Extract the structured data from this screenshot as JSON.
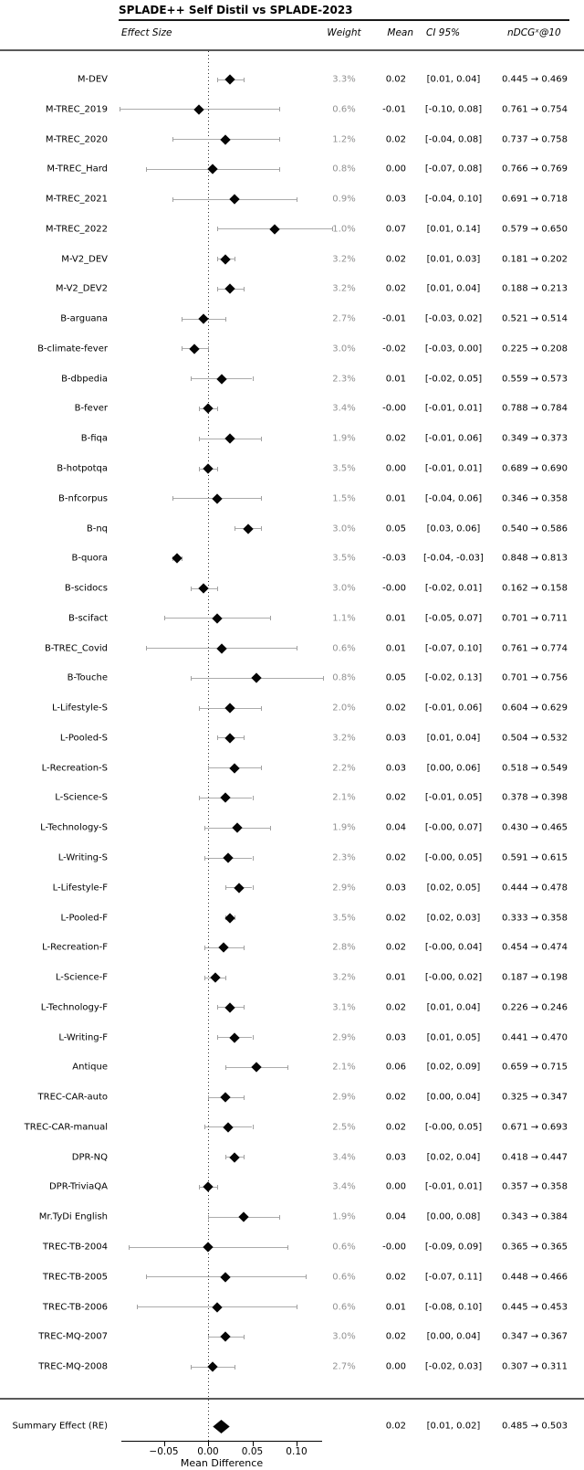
{
  "title": "SPLADE++ Self Distil vs SPLADE-2023",
  "header": {
    "effect_size": "Effect Size",
    "weight": "Weight",
    "mean": "Mean",
    "ci": "CI 95%",
    "ndcg": "nDCGˣ@10"
  },
  "colors": {
    "diamond": "#050505",
    "error_bar": "#ababab",
    "weight_text": "#919191",
    "zero_line": "#2a2a2a"
  },
  "chart_data": {
    "type": "forest",
    "title": "SPLADE++ Self Distil vs SPLADE-2023",
    "xlabel": "Mean Difference",
    "xlim": [
      -0.1,
      0.13
    ],
    "zero_line": 0.0,
    "legend_position": "none",
    "grid": false,
    "axis": {
      "label": "Mean Difference",
      "ticks": [
        {
          "value": -0.05,
          "text": "−0.05"
        },
        {
          "value": 0.0,
          "text": "0.00"
        },
        {
          "value": 0.05,
          "text": "0.05"
        },
        {
          "value": 0.1,
          "text": "0.10"
        }
      ]
    },
    "rows": [
      {
        "label": "M-DEV",
        "weight": "3.3%",
        "mean": "0.02",
        "ci": [
          0.01,
          0.04
        ],
        "ci_text": "[0.01, 0.04]",
        "ndcg": "0.445 → 0.469"
      },
      {
        "label": "M-TREC_2019",
        "weight": "0.6%",
        "mean": "-0.01",
        "ci": [
          -0.1,
          0.08
        ],
        "ci_text": "[-0.10, 0.08]",
        "ndcg": "0.761 → 0.754"
      },
      {
        "label": "M-TREC_2020",
        "weight": "1.2%",
        "mean": "0.02",
        "ci": [
          -0.04,
          0.08
        ],
        "ci_text": "[-0.04, 0.08]",
        "ndcg": "0.737 → 0.758"
      },
      {
        "label": "M-TREC_Hard",
        "weight": "0.8%",
        "mean": "0.00",
        "ci": [
          -0.07,
          0.08
        ],
        "ci_text": "[-0.07, 0.08]",
        "ndcg": "0.766 → 0.769"
      },
      {
        "label": "M-TREC_2021",
        "weight": "0.9%",
        "mean": "0.03",
        "ci": [
          -0.04,
          0.1
        ],
        "ci_text": "[-0.04, 0.10]",
        "ndcg": "0.691 → 0.718"
      },
      {
        "label": "M-TREC_2022",
        "weight": "1.0%",
        "mean": "0.07",
        "ci": [
          0.01,
          0.14
        ],
        "ci_text": "[0.01, 0.14]",
        "ndcg": "0.579 → 0.650"
      },
      {
        "label": "M-V2_DEV",
        "weight": "3.2%",
        "mean": "0.02",
        "ci": [
          0.01,
          0.03
        ],
        "ci_text": "[0.01, 0.03]",
        "ndcg": "0.181 → 0.202"
      },
      {
        "label": "M-V2_DEV2",
        "weight": "3.2%",
        "mean": "0.02",
        "ci": [
          0.01,
          0.04
        ],
        "ci_text": "[0.01, 0.04]",
        "ndcg": "0.188 → 0.213"
      },
      {
        "label": "B-arguana",
        "weight": "2.7%",
        "mean": "-0.01",
        "ci": [
          -0.03,
          0.02
        ],
        "ci_text": "[-0.03, 0.02]",
        "ndcg": "0.521 → 0.514"
      },
      {
        "label": "B-climate-fever",
        "weight": "3.0%",
        "mean": "-0.02",
        "ci": [
          -0.03,
          0.0
        ],
        "ci_text": "[-0.03, 0.00]",
        "ndcg": "0.225 → 0.208"
      },
      {
        "label": "B-dbpedia",
        "weight": "2.3%",
        "mean": "0.01",
        "ci": [
          -0.02,
          0.05
        ],
        "ci_text": "[-0.02, 0.05]",
        "ndcg": "0.559 → 0.573"
      },
      {
        "label": "B-fever",
        "weight": "3.4%",
        "mean": "-0.00",
        "ci": [
          -0.01,
          0.01
        ],
        "ci_text": "[-0.01, 0.01]",
        "ndcg": "0.788 → 0.784"
      },
      {
        "label": "B-fiqa",
        "weight": "1.9%",
        "mean": "0.02",
        "ci": [
          -0.01,
          0.06
        ],
        "ci_text": "[-0.01, 0.06]",
        "ndcg": "0.349 → 0.373"
      },
      {
        "label": "B-hotpotqa",
        "weight": "3.5%",
        "mean": "0.00",
        "ci": [
          -0.01,
          0.01
        ],
        "ci_text": "[-0.01, 0.01]",
        "ndcg": "0.689 → 0.690"
      },
      {
        "label": "B-nfcorpus",
        "weight": "1.5%",
        "mean": "0.01",
        "ci": [
          -0.04,
          0.06
        ],
        "ci_text": "[-0.04, 0.06]",
        "ndcg": "0.346 → 0.358"
      },
      {
        "label": "B-nq",
        "weight": "3.0%",
        "mean": "0.05",
        "ci": [
          0.03,
          0.06
        ],
        "ci_text": "[0.03, 0.06]",
        "ndcg": "0.540 → 0.586"
      },
      {
        "label": "B-quora",
        "weight": "3.5%",
        "mean": "-0.03",
        "ci": [
          -0.04,
          -0.03
        ],
        "ci_text": "[-0.04, -0.03]",
        "ndcg": "0.848 → 0.813"
      },
      {
        "label": "B-scidocs",
        "weight": "3.0%",
        "mean": "-0.00",
        "ci": [
          -0.02,
          0.01
        ],
        "ci_text": "[-0.02, 0.01]",
        "ndcg": "0.162 → 0.158"
      },
      {
        "label": "B-scifact",
        "weight": "1.1%",
        "mean": "0.01",
        "ci": [
          -0.05,
          0.07
        ],
        "ci_text": "[-0.05, 0.07]",
        "ndcg": "0.701 → 0.711"
      },
      {
        "label": "B-TREC_Covid",
        "weight": "0.6%",
        "mean": "0.01",
        "ci": [
          -0.07,
          0.1
        ],
        "ci_text": "[-0.07, 0.10]",
        "ndcg": "0.761 → 0.774"
      },
      {
        "label": "B-Touche",
        "weight": "0.8%",
        "mean": "0.05",
        "ci": [
          -0.02,
          0.13
        ],
        "ci_text": "[-0.02, 0.13]",
        "ndcg": "0.701 → 0.756"
      },
      {
        "label": "L-Lifestyle-S",
        "weight": "2.0%",
        "mean": "0.02",
        "ci": [
          -0.01,
          0.06
        ],
        "ci_text": "[-0.01, 0.06]",
        "ndcg": "0.604 → 0.629"
      },
      {
        "label": "L-Pooled-S",
        "weight": "3.2%",
        "mean": "0.03",
        "ci": [
          0.01,
          0.04
        ],
        "ci_text": "[0.01, 0.04]",
        "ndcg": "0.504 → 0.532"
      },
      {
        "label": "L-Recreation-S",
        "weight": "2.2%",
        "mean": "0.03",
        "ci": [
          0.0,
          0.06
        ],
        "ci_text": "[0.00, 0.06]",
        "ndcg": "0.518 → 0.549"
      },
      {
        "label": "L-Science-S",
        "weight": "2.1%",
        "mean": "0.02",
        "ci": [
          -0.01,
          0.05
        ],
        "ci_text": "[-0.01, 0.05]",
        "ndcg": "0.378 → 0.398"
      },
      {
        "label": "L-Technology-S",
        "weight": "1.9%",
        "mean": "0.04",
        "ci": [
          -0.004,
          0.07
        ],
        "ci_text": "[-0.00, 0.07]",
        "ndcg": "0.430 → 0.465"
      },
      {
        "label": "L-Writing-S",
        "weight": "2.3%",
        "mean": "0.02",
        "ci": [
          -0.004,
          0.05
        ],
        "ci_text": "[-0.00, 0.05]",
        "ndcg": "0.591 → 0.615"
      },
      {
        "label": "L-Lifestyle-F",
        "weight": "2.9%",
        "mean": "0.03",
        "ci": [
          0.02,
          0.05
        ],
        "ci_text": "[0.02, 0.05]",
        "ndcg": "0.444 → 0.478"
      },
      {
        "label": "L-Pooled-F",
        "weight": "3.5%",
        "mean": "0.02",
        "ci": [
          0.02,
          0.03
        ],
        "ci_text": "[0.02, 0.03]",
        "ndcg": "0.333 → 0.358"
      },
      {
        "label": "L-Recreation-F",
        "weight": "2.8%",
        "mean": "0.02",
        "ci": [
          -0.004,
          0.04
        ],
        "ci_text": "[-0.00, 0.04]",
        "ndcg": "0.454 → 0.474"
      },
      {
        "label": "L-Science-F",
        "weight": "3.2%",
        "mean": "0.01",
        "ci": [
          -0.004,
          0.02
        ],
        "ci_text": "[-0.00, 0.02]",
        "ndcg": "0.187 → 0.198"
      },
      {
        "label": "L-Technology-F",
        "weight": "3.1%",
        "mean": "0.02",
        "ci": [
          0.01,
          0.04
        ],
        "ci_text": "[0.01, 0.04]",
        "ndcg": "0.226 → 0.246"
      },
      {
        "label": "L-Writing-F",
        "weight": "2.9%",
        "mean": "0.03",
        "ci": [
          0.01,
          0.05
        ],
        "ci_text": "[0.01, 0.05]",
        "ndcg": "0.441 → 0.470"
      },
      {
        "label": "Antique",
        "weight": "2.1%",
        "mean": "0.06",
        "ci": [
          0.02,
          0.09
        ],
        "ci_text": "[0.02, 0.09]",
        "ndcg": "0.659 → 0.715"
      },
      {
        "label": "TREC-CAR-auto",
        "weight": "2.9%",
        "mean": "0.02",
        "ci": [
          0.0,
          0.04
        ],
        "ci_text": "[0.00, 0.04]",
        "ndcg": "0.325 → 0.347"
      },
      {
        "label": "TREC-CAR-manual",
        "weight": "2.5%",
        "mean": "0.02",
        "ci": [
          -0.004,
          0.05
        ],
        "ci_text": "[-0.00, 0.05]",
        "ndcg": "0.671 → 0.693"
      },
      {
        "label": "DPR-NQ",
        "weight": "3.4%",
        "mean": "0.03",
        "ci": [
          0.02,
          0.04
        ],
        "ci_text": "[0.02, 0.04]",
        "ndcg": "0.418 → 0.447"
      },
      {
        "label": "DPR-TriviaQA",
        "weight": "3.4%",
        "mean": "0.00",
        "ci": [
          -0.01,
          0.01
        ],
        "ci_text": "[-0.01, 0.01]",
        "ndcg": "0.357 → 0.358"
      },
      {
        "label": "Mr.TyDi English",
        "weight": "1.9%",
        "mean": "0.04",
        "ci": [
          0.0,
          0.08
        ],
        "ci_text": "[0.00, 0.08]",
        "ndcg": "0.343 → 0.384"
      },
      {
        "label": "TREC-TB-2004",
        "weight": "0.6%",
        "mean": "-0.00",
        "ci": [
          -0.09,
          0.09
        ],
        "ci_text": "[-0.09, 0.09]",
        "ndcg": "0.365 → 0.365"
      },
      {
        "label": "TREC-TB-2005",
        "weight": "0.6%",
        "mean": "0.02",
        "ci": [
          -0.07,
          0.11
        ],
        "ci_text": "[-0.07, 0.11]",
        "ndcg": "0.448 → 0.466"
      },
      {
        "label": "TREC-TB-2006",
        "weight": "0.6%",
        "mean": "0.01",
        "ci": [
          -0.08,
          0.1
        ],
        "ci_text": "[-0.08, 0.10]",
        "ndcg": "0.445 → 0.453"
      },
      {
        "label": "TREC-MQ-2007",
        "weight": "3.0%",
        "mean": "0.02",
        "ci": [
          0.0,
          0.04
        ],
        "ci_text": "[0.00, 0.04]",
        "ndcg": "0.347 → 0.367"
      },
      {
        "label": "TREC-MQ-2008",
        "weight": "2.7%",
        "mean": "0.00",
        "ci": [
          -0.02,
          0.03
        ],
        "ci_text": "[-0.02, 0.03]",
        "ndcg": "0.307 → 0.311"
      }
    ],
    "summary": {
      "label": "Summary Effect (RE)",
      "mean": "0.02",
      "ci": [
        0.01,
        0.02
      ],
      "ci_text": "[0.01, 0.02]",
      "ndcg": "0.485 → 0.503"
    }
  }
}
